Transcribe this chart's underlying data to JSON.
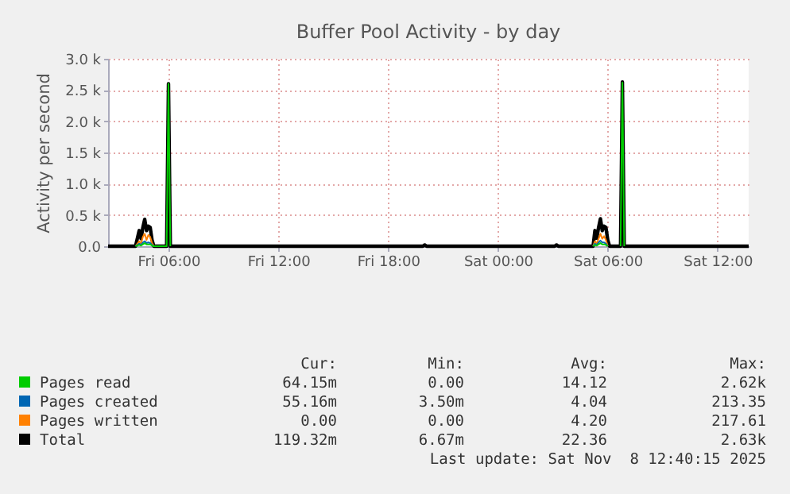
{
  "chart_data": {
    "type": "line",
    "title": "Buffer Pool Activity - by day",
    "ylabel": "Activity per second",
    "x": [
      "2025-11-07T02:42",
      "2025-11-07T04:12",
      "2025-11-07T04:24",
      "2025-11-07T04:30",
      "2025-11-07T04:36",
      "2025-11-07T04:42",
      "2025-11-07T04:48",
      "2025-11-07T04:54",
      "2025-11-07T05:00",
      "2025-11-07T05:06",
      "2025-11-07T05:12",
      "2025-11-07T05:54",
      "2025-11-07T06:00",
      "2025-11-07T06:06",
      "2025-11-07T19:54",
      "2025-11-07T20:00",
      "2025-11-07T20:06",
      "2025-11-08T03:06",
      "2025-11-08T03:12",
      "2025-11-08T03:18",
      "2025-11-08T05:00",
      "2025-11-08T05:12",
      "2025-11-08T05:18",
      "2025-11-08T05:24",
      "2025-11-08T05:30",
      "2025-11-08T05:36",
      "2025-11-08T05:42",
      "2025-11-08T05:48",
      "2025-11-08T05:54",
      "2025-11-08T06:00",
      "2025-11-08T06:06",
      "2025-11-08T06:42",
      "2025-11-08T06:48",
      "2025-11-08T06:54",
      "2025-11-08T13:42"
    ],
    "series": [
      {
        "name": "Pages read",
        "color": "#00cc00",
        "values": [
          null,
          0,
          20,
          10,
          30,
          50,
          30,
          30,
          30,
          10,
          0,
          0,
          2600,
          0,
          null,
          null,
          null,
          null,
          null,
          null,
          null,
          0,
          20,
          10,
          30,
          50,
          30,
          30,
          20,
          0,
          null,
          0,
          2620,
          0,
          null
        ]
      },
      {
        "name": "Pages created",
        "color": "#0066b3",
        "values": [
          null,
          0,
          40,
          20,
          60,
          80,
          50,
          60,
          50,
          20,
          0,
          null,
          null,
          null,
          null,
          null,
          null,
          null,
          null,
          null,
          null,
          0,
          40,
          20,
          60,
          90,
          60,
          60,
          40,
          0,
          null,
          null,
          null,
          null,
          null
        ]
      },
      {
        "name": "Pages written",
        "color": "#ff8000",
        "values": [
          null,
          0,
          80,
          40,
          150,
          200,
          100,
          180,
          150,
          50,
          0,
          null,
          null,
          null,
          null,
          null,
          null,
          null,
          null,
          null,
          null,
          0,
          80,
          40,
          120,
          200,
          120,
          160,
          100,
          0,
          null,
          null,
          null,
          null,
          null
        ]
      },
      {
        "name": "Total",
        "color": "#000000",
        "values": [
          0,
          0,
          250,
          120,
          300,
          430,
          250,
          320,
          300,
          100,
          0,
          0,
          2600,
          0,
          0,
          20,
          0,
          0,
          20,
          0,
          0,
          0,
          250,
          130,
          300,
          440,
          250,
          320,
          300,
          100,
          0,
          0,
          2630,
          0,
          0
        ]
      }
    ],
    "xlim": [
      "2025-11-07T02:42",
      "2025-11-08T13:42"
    ],
    "xticks": [
      {
        "value": "2025-11-07T06:00",
        "label": "Fri 06:00"
      },
      {
        "value": "2025-11-07T12:00",
        "label": "Fri 12:00"
      },
      {
        "value": "2025-11-07T18:00",
        "label": "Fri 18:00"
      },
      {
        "value": "2025-11-08T00:00",
        "label": "Sat 00:00"
      },
      {
        "value": "2025-11-08T06:00",
        "label": "Sat 06:00"
      },
      {
        "value": "2025-11-08T12:00",
        "label": "Sat 12:00"
      }
    ],
    "ylim": [
      0,
      3000
    ],
    "yticks": [
      {
        "value": 0,
        "label": "0.0"
      },
      {
        "value": 500,
        "label": "0.5 k"
      },
      {
        "value": 1000,
        "label": "1.0 k"
      },
      {
        "value": 1500,
        "label": "1.5 k"
      },
      {
        "value": 2000,
        "label": "2.0 k"
      },
      {
        "value": 2500,
        "label": "2.5 k"
      },
      {
        "value": 3000,
        "label": "3.0 k"
      }
    ],
    "grid": true,
    "legend": "bottom",
    "marker": "none",
    "line_style": "solid",
    "annotations": [
      "Cur:",
      "Min:",
      "Avg:",
      "Max:",
      "64.15m",
      "0.00",
      "14.12",
      "2.62k",
      "55.16m",
      "3.50m",
      "4.04",
      "213.35",
      "0.00",
      "0.00",
      "4.20",
      "217.61",
      "119.32m",
      "6.67m",
      "22.36",
      "2.63k",
      "Last update: Sat Nov  8 12:40:15 2025"
    ]
  }
}
